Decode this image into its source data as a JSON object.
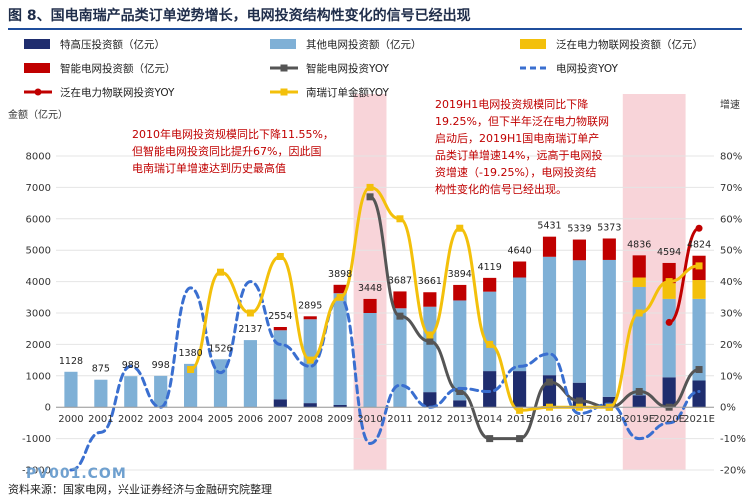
{
  "title": "图 8、国电南瑞产品类订单逆势增长，电网投资结构性变化的信号已经出现",
  "source": "资料来源：国家电网，兴业证券经济与金融研究院整理",
  "watermark": "PV001.COM",
  "colors": {
    "uhv": "#1f2d6e",
    "other": "#7fb0d6",
    "upiot": "#f3c00b",
    "smart": "#c00000",
    "smart_yoy": "#555555",
    "grid_yoy": "#3a6fd0",
    "upiot_yoy": "#c00000",
    "orders": "#f3c00b",
    "highlight": "#f6c6cc"
  },
  "legend": [
    {
      "key": "uhv",
      "label": "特高压投资额（亿元）",
      "type": "bar"
    },
    {
      "key": "other",
      "label": "其他电网投资额（亿元）",
      "type": "bar"
    },
    {
      "key": "upiot",
      "label": "泛在电力物联网投资额（亿元）",
      "type": "bar"
    },
    {
      "key": "smart",
      "label": "智能电网投资额（亿元）",
      "type": "bar"
    },
    {
      "key": "smart_yoy",
      "label": "智能电网投资YOY",
      "type": "line-square"
    },
    {
      "key": "grid_yoy",
      "label": "电网投资YOY",
      "type": "line-dash"
    },
    {
      "key": "upiot_yoy",
      "label": "泛在电力物联网投资YOY",
      "type": "line-dot"
    },
    {
      "key": "orders",
      "label": "南瑞订单金额YOY",
      "type": "line-square"
    }
  ],
  "annotations": {
    "left": [
      "2010年电网投资规模同比下降11.55%，",
      "但智能电网投资同比提升67%，因此国",
      "电南瑞订单增速达到历史最高值"
    ],
    "right": [
      "2019H1电网投资规模同比下降",
      "19.25%，但下半年泛在电力物联网",
      "启动后，2019H1国电南瑞订单产",
      "品类订单增速14%，远高于电网投",
      "资增速（-19.25%），电网投资结",
      "构性变化的信号已经出现。"
    ]
  },
  "chart_data": {
    "type": "bar",
    "categories": [
      "2000",
      "2001",
      "2002",
      "2003",
      "2004",
      "2005",
      "2006",
      "2007",
      "2008",
      "2009",
      "2010",
      "2011",
      "2012",
      "2013",
      "2014",
      "2015",
      "2016",
      "2017",
      "2018",
      "2019E",
      "2020E",
      "2021E"
    ],
    "ylabel_left": "金额（亿元）",
    "ylabel_right": "增速",
    "ylim_left": [
      -2000,
      8000
    ],
    "yticks_left": [
      "-2000",
      "-1000",
      "0",
      "1000",
      "2000",
      "3000",
      "4000",
      "5000",
      "6000",
      "7000",
      "8000"
    ],
    "ylim_right": [
      -20,
      80
    ],
    "yticks_right": [
      "-20%",
      "-10%",
      "0%",
      "10%",
      "20%",
      "30%",
      "40%",
      "50%",
      "60%",
      "70%",
      "80%"
    ],
    "highlight_categories": [
      "2010",
      "2019E"
    ],
    "totals": [
      "1128",
      "875",
      "988",
      "998",
      "1380",
      "1526",
      "2137",
      "2554",
      "2895",
      "3898",
      "3448",
      "3687",
      "3661",
      "3894",
      "4119",
      "4640",
      "5431",
      "5339",
      "5373",
      "4836",
      "4594",
      "4824"
    ],
    "series": [
      {
        "name": "特高压投资额（亿元）",
        "key": "uhv",
        "kind": "bar",
        "values": [
          0,
          0,
          0,
          0,
          0,
          0,
          0,
          250,
          130,
          70,
          0,
          0,
          480,
          220,
          1150,
          1150,
          1020,
          780,
          330,
          380,
          950,
          850
        ]
      },
      {
        "name": "其他电网投资额（亿元）",
        "key": "other",
        "kind": "bar",
        "values": [
          1128,
          875,
          988,
          998,
          1380,
          1526,
          2137,
          2200,
          2670,
          3560,
          3000,
          3150,
          2720,
          3180,
          2530,
          2980,
          3770,
          3900,
          4360,
          3450,
          2500,
          2600
        ]
      },
      {
        "name": "泛在电力物联网投资额（亿元）",
        "key": "upiot",
        "kind": "bar",
        "values": [
          0,
          0,
          0,
          0,
          0,
          0,
          0,
          0,
          0,
          0,
          0,
          0,
          0,
          0,
          0,
          0,
          0,
          0,
          0,
          300,
          500,
          600
        ]
      },
      {
        "name": "智能电网投资额（亿元）",
        "key": "smart",
        "kind": "bar",
        "values": [
          0,
          0,
          0,
          0,
          0,
          0,
          0,
          104,
          95,
          268,
          448,
          537,
          461,
          494,
          439,
          510,
          641,
          659,
          683,
          706,
          644,
          774
        ]
      },
      {
        "name": "智能电网投资YOY",
        "key": "smart_yoy",
        "kind": "line",
        "values": [
          null,
          null,
          null,
          null,
          null,
          null,
          null,
          null,
          null,
          null,
          67,
          29,
          21,
          5,
          -10,
          -10,
          8,
          2,
          0,
          5,
          0,
          12
        ]
      },
      {
        "name": "电网投资YOY",
        "key": "grid_yoy",
        "kind": "line",
        "values": [
          -20,
          -8,
          13,
          0,
          38,
          11,
          40,
          20,
          13,
          35,
          -11.55,
          7,
          0,
          6,
          5,
          13,
          17,
          -2,
          1,
          -10,
          -5,
          5
        ]
      },
      {
        "name": "泛在电力物联网投资YOY",
        "key": "upiot_yoy",
        "kind": "line",
        "values": [
          null,
          null,
          null,
          null,
          null,
          null,
          null,
          null,
          null,
          null,
          null,
          null,
          null,
          null,
          null,
          null,
          null,
          null,
          null,
          null,
          27,
          57
        ]
      },
      {
        "name": "南瑞订单金额YOY",
        "key": "orders",
        "kind": "line",
        "values": [
          null,
          null,
          null,
          null,
          12,
          43,
          30,
          48,
          15,
          35,
          70,
          60,
          23,
          57,
          20,
          -1,
          0,
          0,
          0,
          30,
          40,
          45
        ]
      }
    ]
  }
}
